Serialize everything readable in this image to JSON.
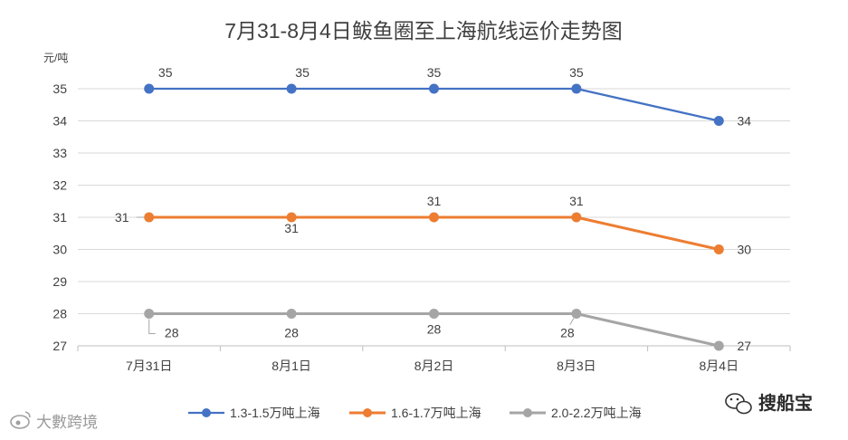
{
  "chart_data": {
    "type": "line",
    "title": "7月31-8月4日鲅鱼圈至上海航线运价走势图",
    "ylabel": "元/吨",
    "xlabel": "",
    "categories": [
      "7月31日",
      "8月1日",
      "8月2日",
      "8月3日",
      "8月4日"
    ],
    "ylim": [
      27,
      35
    ],
    "yticks": [
      "27",
      "28",
      "29",
      "30",
      "31",
      "32",
      "33",
      "34",
      "35"
    ],
    "grid": true,
    "legend": "bottom",
    "series": [
      {
        "name": "1.3-1.5万吨上海",
        "color": "#4472C4",
        "values": [
          35,
          35,
          35,
          35,
          34
        ],
        "labels": [
          "35",
          "35",
          "35",
          "35",
          "34"
        ]
      },
      {
        "name": "1.6-1.7万吨上海",
        "color": "#ED7D31",
        "values": [
          31,
          31,
          31,
          31,
          30
        ],
        "labels": [
          "31",
          "31",
          "31",
          "31",
          "30"
        ]
      },
      {
        "name": "2.0-2.2万吨上海",
        "color": "#A5A5A5",
        "values": [
          28,
          28,
          28,
          28,
          27
        ],
        "labels": [
          "28",
          "28",
          "28",
          "28",
          "27"
        ]
      }
    ]
  },
  "watermarks": {
    "left_text": "大數跨境",
    "left_icon": "weibo-icon",
    "right_text": "搜船宝",
    "right_icon": "wechat-icon"
  }
}
